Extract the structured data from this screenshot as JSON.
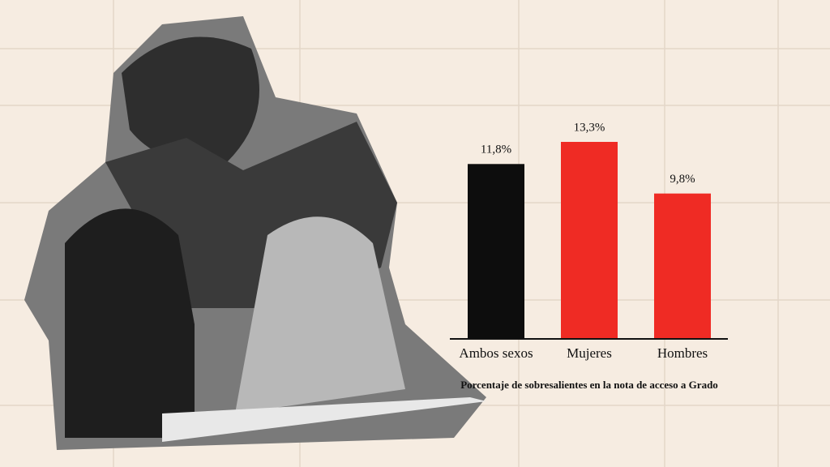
{
  "chart_data": {
    "type": "bar",
    "categories": [
      "Ambos sexos",
      "Mujeres",
      "Hombres"
    ],
    "values": [
      11.8,
      13.3,
      9.8
    ],
    "value_labels": [
      "11,8%",
      "13,3%",
      "9,8%"
    ],
    "colors": [
      "#0d0d0d",
      "#ef2b24",
      "#ef2b24"
    ],
    "caption": "Porcentaje de sobresalientes en la nota de acceso a Grado"
  }
}
